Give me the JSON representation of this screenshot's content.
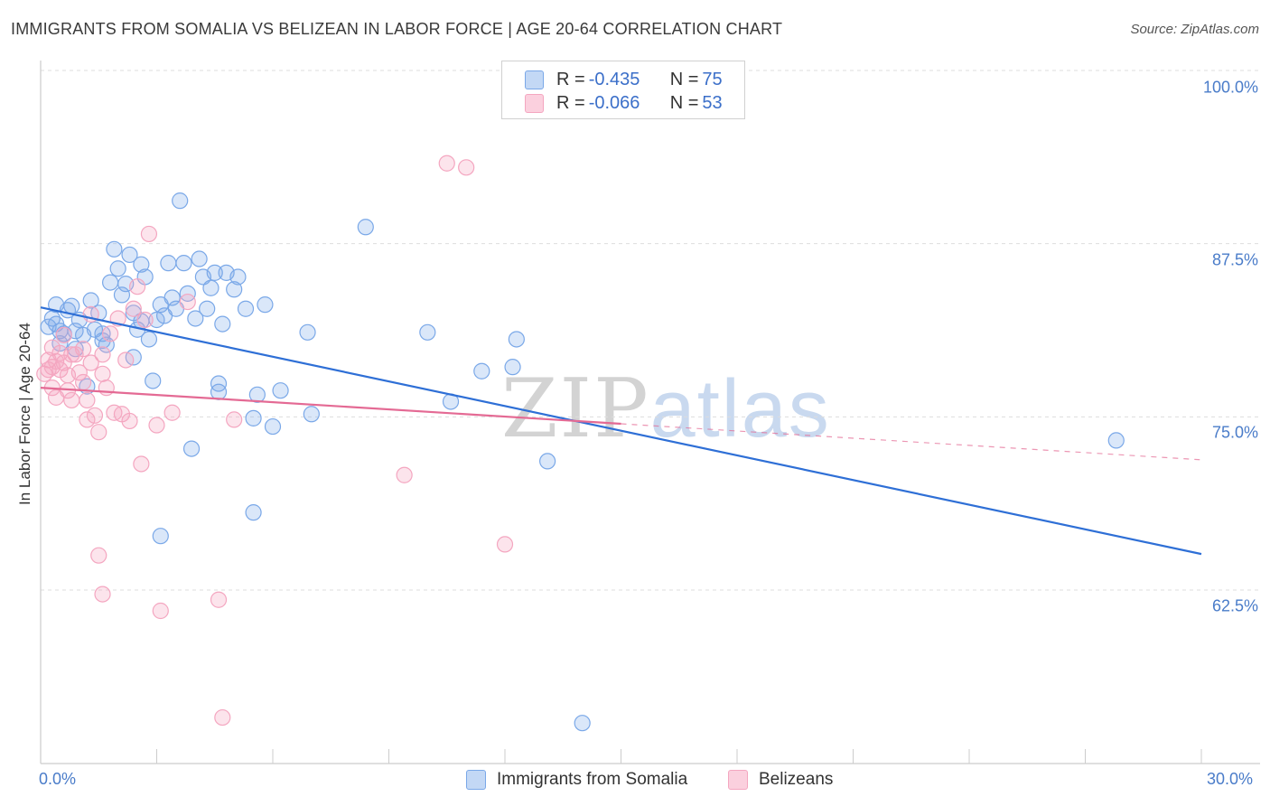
{
  "title": "IMMIGRANTS FROM SOMALIA VS BELIZEAN IN LABOR FORCE | AGE 20-64 CORRELATION CHART",
  "source": "Source: ZipAtlas.com",
  "watermark": {
    "zip": "ZIP",
    "atlas": "atlas"
  },
  "legend": {
    "r_label": "R =",
    "n_label": "N =",
    "rows": [
      {
        "r": "-0.435",
        "n": "75"
      },
      {
        "r": "-0.066",
        "n": "53"
      }
    ]
  },
  "chart_data": {
    "type": "scatter",
    "title": "IMMIGRANTS FROM SOMALIA VS BELIZEAN IN LABOR FORCE | AGE 20-64 CORRELATION CHART",
    "xlabel": "",
    "ylabel": "In Labor Force | Age 20-64",
    "xlim": [
      0,
      30
    ],
    "ylim": [
      52,
      102
    ],
    "x_tick_labels": [
      "0.0%",
      "30.0%"
    ],
    "y_ticks": [
      100.0,
      87.5,
      75.0,
      62.5
    ],
    "y_tick_labels": [
      "100.0%",
      "87.5%",
      "75.0%",
      "62.5%"
    ],
    "grid": true,
    "legend_position": "top-center",
    "series": [
      {
        "name": "Immigrants from Somalia",
        "color": "#7aa8e8",
        "trend": {
          "x0": 0,
          "y0": 82.9,
          "x1": 30,
          "y1": 65.1,
          "color": "#2e6fd6"
        },
        "points": [
          [
            0.2,
            81.5
          ],
          [
            0.3,
            82.1
          ],
          [
            0.4,
            83.1
          ],
          [
            0.5,
            81.2
          ],
          [
            0.5,
            80.3
          ],
          [
            0.6,
            81.0
          ],
          [
            0.7,
            82.7
          ],
          [
            0.8,
            83.0
          ],
          [
            0.9,
            81.2
          ],
          [
            1.0,
            82.0
          ],
          [
            1.1,
            80.9
          ],
          [
            1.2,
            77.2
          ],
          [
            1.3,
            83.4
          ],
          [
            1.4,
            81.3
          ],
          [
            1.5,
            82.5
          ],
          [
            1.6,
            80.5
          ],
          [
            1.7,
            80.2
          ],
          [
            1.8,
            84.7
          ],
          [
            1.9,
            87.1
          ],
          [
            2.0,
            85.7
          ],
          [
            2.1,
            83.8
          ],
          [
            2.2,
            84.6
          ],
          [
            2.3,
            86.7
          ],
          [
            2.4,
            82.5
          ],
          [
            2.5,
            81.3
          ],
          [
            2.6,
            86.0
          ],
          [
            2.7,
            85.1
          ],
          [
            2.8,
            80.6
          ],
          [
            2.9,
            77.6
          ],
          [
            3.0,
            82.0
          ],
          [
            3.1,
            83.1
          ],
          [
            3.2,
            82.3
          ],
          [
            3.3,
            86.1
          ],
          [
            3.4,
            83.6
          ],
          [
            3.5,
            82.8
          ],
          [
            3.6,
            90.6
          ],
          [
            3.7,
            86.1
          ],
          [
            3.8,
            83.9
          ],
          [
            3.9,
            72.7
          ],
          [
            4.0,
            82.1
          ],
          [
            4.1,
            86.4
          ],
          [
            4.2,
            85.1
          ],
          [
            4.3,
            82.8
          ],
          [
            4.4,
            84.3
          ],
          [
            4.5,
            85.4
          ],
          [
            4.6,
            77.4
          ],
          [
            4.7,
            81.7
          ],
          [
            4.8,
            85.4
          ],
          [
            5.0,
            84.2
          ],
          [
            5.1,
            85.1
          ],
          [
            5.3,
            82.8
          ],
          [
            5.5,
            74.9
          ],
          [
            5.6,
            76.6
          ],
          [
            5.8,
            83.1
          ],
          [
            6.0,
            74.3
          ],
          [
            6.2,
            76.9
          ],
          [
            6.9,
            81.1
          ],
          [
            7.0,
            75.2
          ],
          [
            4.6,
            76.8
          ],
          [
            2.4,
            79.3
          ],
          [
            8.4,
            88.7
          ],
          [
            10.0,
            81.1
          ],
          [
            10.6,
            76.1
          ],
          [
            11.4,
            78.3
          ],
          [
            12.2,
            78.6
          ],
          [
            12.3,
            80.6
          ],
          [
            13.1,
            71.8
          ],
          [
            14.0,
            52.9
          ],
          [
            27.8,
            73.3
          ],
          [
            5.5,
            68.1
          ],
          [
            3.1,
            66.4
          ],
          [
            0.9,
            79.9
          ],
          [
            1.6,
            81.0
          ],
          [
            2.6,
            81.9
          ],
          [
            0.4,
            81.7
          ]
        ]
      },
      {
        "name": "Belizeans",
        "color": "#f4a6c0",
        "trend": {
          "x0": 0,
          "y0": 77.1,
          "x1": 15,
          "y1": 74.5,
          "color": "#e46a94"
        },
        "trend_dashed": {
          "x0": 15,
          "y0": 74.5,
          "x1": 30,
          "y1": 71.9
        },
        "points": [
          [
            0.1,
            78.1
          ],
          [
            0.2,
            78.4
          ],
          [
            0.2,
            79.1
          ],
          [
            0.3,
            78.6
          ],
          [
            0.3,
            77.1
          ],
          [
            0.4,
            76.4
          ],
          [
            0.5,
            78.4
          ],
          [
            0.5,
            79.6
          ],
          [
            0.6,
            78.9
          ],
          [
            0.7,
            76.9
          ],
          [
            0.7,
            78.0
          ],
          [
            0.8,
            76.2
          ],
          [
            0.9,
            79.5
          ],
          [
            1.0,
            78.2
          ],
          [
            1.1,
            79.9
          ],
          [
            1.2,
            76.2
          ],
          [
            1.3,
            78.9
          ],
          [
            1.4,
            75.1
          ],
          [
            1.5,
            73.9
          ],
          [
            1.6,
            79.5
          ],
          [
            1.6,
            78.1
          ],
          [
            1.7,
            77.1
          ],
          [
            1.8,
            81.0
          ],
          [
            1.9,
            75.3
          ],
          [
            2.0,
            82.1
          ],
          [
            2.1,
            75.2
          ],
          [
            2.2,
            79.1
          ],
          [
            2.3,
            74.7
          ],
          [
            2.4,
            82.8
          ],
          [
            2.5,
            84.4
          ],
          [
            2.6,
            71.6
          ],
          [
            2.7,
            82.0
          ],
          [
            2.8,
            88.2
          ],
          [
            3.0,
            74.4
          ],
          [
            3.1,
            61.0
          ],
          [
            3.4,
            75.3
          ],
          [
            3.8,
            83.3
          ],
          [
            4.6,
            61.8
          ],
          [
            4.7,
            53.3
          ],
          [
            5.0,
            74.8
          ],
          [
            9.4,
            70.8
          ],
          [
            10.5,
            93.3
          ],
          [
            11.0,
            93.0
          ],
          [
            12.0,
            65.8
          ],
          [
            1.5,
            65.0
          ],
          [
            1.6,
            62.2
          ],
          [
            1.2,
            74.8
          ],
          [
            0.3,
            80.0
          ],
          [
            0.4,
            79.0
          ],
          [
            0.8,
            79.5
          ],
          [
            1.1,
            77.5
          ],
          [
            0.6,
            80.9
          ],
          [
            1.3,
            82.4
          ]
        ]
      }
    ]
  }
}
